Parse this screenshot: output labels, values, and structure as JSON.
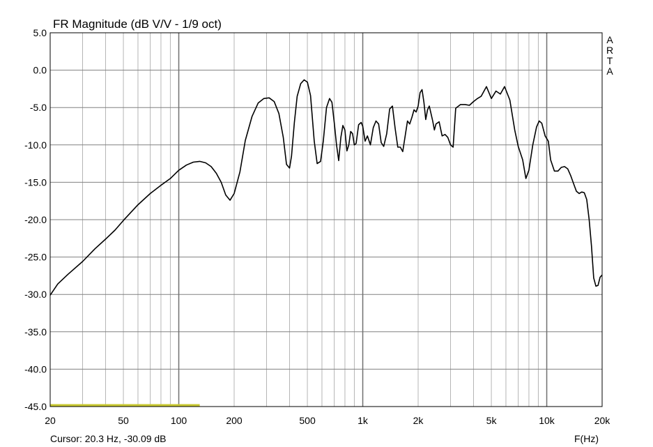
{
  "chart_data": {
    "type": "line",
    "title": "FR Magnitude (dB V/V - 1/9 oct)",
    "xlabel": "F(Hz)",
    "ylabel": "",
    "x_scale": "log",
    "xlim": [
      20,
      20000
    ],
    "ylim": [
      -45,
      5
    ],
    "grid": true,
    "watermark": "ARTA",
    "cursor_text": "Cursor: 20.3 Hz, -30.09 dB",
    "x_ticks": [
      {
        "value": 20,
        "label": "20"
      },
      {
        "value": 50,
        "label": "50"
      },
      {
        "value": 100,
        "label": "100"
      },
      {
        "value": 200,
        "label": "200"
      },
      {
        "value": 500,
        "label": "500"
      },
      {
        "value": 1000,
        "label": "1k"
      },
      {
        "value": 2000,
        "label": "2k"
      },
      {
        "value": 5000,
        "label": "5k"
      },
      {
        "value": 10000,
        "label": "10k"
      },
      {
        "value": 20000,
        "label": "20k"
      }
    ],
    "y_ticks": [
      {
        "value": 5,
        "label": "5.0"
      },
      {
        "value": 0,
        "label": "0.0"
      },
      {
        "value": -5,
        "label": "-5.0"
      },
      {
        "value": -10,
        "label": "-10.0"
      },
      {
        "value": -15,
        "label": "-15.0"
      },
      {
        "value": -20,
        "label": "-20.0"
      },
      {
        "value": -25,
        "label": "-25.0"
      },
      {
        "value": -30,
        "label": "-30.0"
      },
      {
        "value": -35,
        "label": "-35.0"
      },
      {
        "value": -40,
        "label": "-40.0"
      },
      {
        "value": -45,
        "label": "-45.0"
      }
    ],
    "minor_x_grid": [
      30,
      40,
      60,
      70,
      80,
      90,
      300,
      400,
      600,
      700,
      800,
      900,
      3000,
      4000,
      6000,
      7000,
      8000,
      9000
    ],
    "major_x_grid": [
      100,
      1000,
      10000
    ],
    "series": [
      {
        "color": "#000000",
        "x": [
          20,
          22,
          25,
          30,
          35,
          40,
          45,
          50,
          55,
          60,
          70,
          80,
          90,
          100,
          110,
          120,
          130,
          140,
          150,
          160,
          170,
          180,
          190,
          200,
          215,
          230,
          250,
          270,
          290,
          310,
          330,
          350,
          370,
          385,
          400,
          410,
          425,
          440,
          460,
          480,
          500,
          520,
          545,
          565,
          590,
          610,
          635,
          660,
          680,
          700,
          720,
          740,
          760,
          780,
          800,
          820,
          840,
          860,
          880,
          900,
          920,
          950,
          980,
          1000,
          1030,
          1060,
          1100,
          1140,
          1180,
          1220,
          1260,
          1300,
          1350,
          1400,
          1450,
          1500,
          1550,
          1600,
          1650,
          1700,
          1750,
          1800,
          1850,
          1900,
          1950,
          2000,
          2050,
          2100,
          2150,
          2200,
          2250,
          2300,
          2400,
          2450,
          2500,
          2600,
          2700,
          2800,
          2900,
          3000,
          3100,
          3200,
          3400,
          3600,
          3800,
          4000,
          4200,
          4400,
          4700,
          5000,
          5300,
          5600,
          5900,
          6300,
          6700,
          7000,
          7400,
          7700,
          8000,
          8400,
          8800,
          9100,
          9400,
          9800,
          10200,
          10500,
          11000,
          11500,
          12000,
          12500,
          13000,
          13500,
          14000,
          14500,
          15000,
          15500,
          16000,
          16500,
          17000,
          17500,
          18000,
          18500,
          19000,
          19500,
          20000
        ],
        "y": [
          -30.1,
          -28.6,
          -27.3,
          -25.6,
          -23.9,
          -22.6,
          -21.4,
          -20.1,
          -19.0,
          -18.0,
          -16.5,
          -15.4,
          -14.5,
          -13.4,
          -12.7,
          -12.3,
          -12.2,
          -12.4,
          -12.9,
          -13.8,
          -15.0,
          -16.7,
          -17.4,
          -16.5,
          -13.6,
          -9.4,
          -6.2,
          -4.4,
          -3.8,
          -3.7,
          -4.2,
          -5.8,
          -9.0,
          -12.6,
          -13.1,
          -11.5,
          -7.0,
          -3.5,
          -1.8,
          -1.3,
          -1.6,
          -3.4,
          -9.5,
          -12.5,
          -12.2,
          -9.5,
          -5.0,
          -3.8,
          -4.3,
          -7.0,
          -10.0,
          -12.1,
          -9.0,
          -7.4,
          -8.0,
          -10.8,
          -10.0,
          -8.2,
          -8.5,
          -10.0,
          -9.8,
          -7.3,
          -7.0,
          -7.5,
          -9.5,
          -8.8,
          -10.0,
          -7.7,
          -6.8,
          -7.2,
          -9.7,
          -10.2,
          -8.5,
          -5.2,
          -4.8,
          -7.8,
          -10.3,
          -10.3,
          -10.9,
          -8.8,
          -6.8,
          -7.2,
          -6.3,
          -5.3,
          -5.6,
          -4.8,
          -3.0,
          -2.6,
          -4.3,
          -6.6,
          -5.3,
          -4.8,
          -6.8,
          -8.0,
          -7.2,
          -6.9,
          -8.8,
          -8.6,
          -9.0,
          -10.0,
          -10.3,
          -5.1,
          -4.6,
          -4.6,
          -4.7,
          -4.2,
          -3.8,
          -3.5,
          -2.2,
          -3.8,
          -2.8,
          -3.2,
          -2.2,
          -4.0,
          -8.0,
          -10.2,
          -12.0,
          -14.5,
          -13.4,
          -10.0,
          -7.6,
          -6.8,
          -7.1,
          -8.8,
          -9.5,
          -12.0,
          -13.5,
          -13.5,
          -13.0,
          -12.9,
          -13.2,
          -14.1,
          -15.2,
          -16.2,
          -16.5,
          -16.3,
          -16.4,
          -17.3,
          -20.0,
          -23.5,
          -27.8,
          -28.9,
          -28.8,
          -27.7,
          -27.4
        ]
      }
    ],
    "cursor_line": {
      "x": [
        20,
        130
      ],
      "y": -45,
      "color": "#c8c832"
    }
  }
}
